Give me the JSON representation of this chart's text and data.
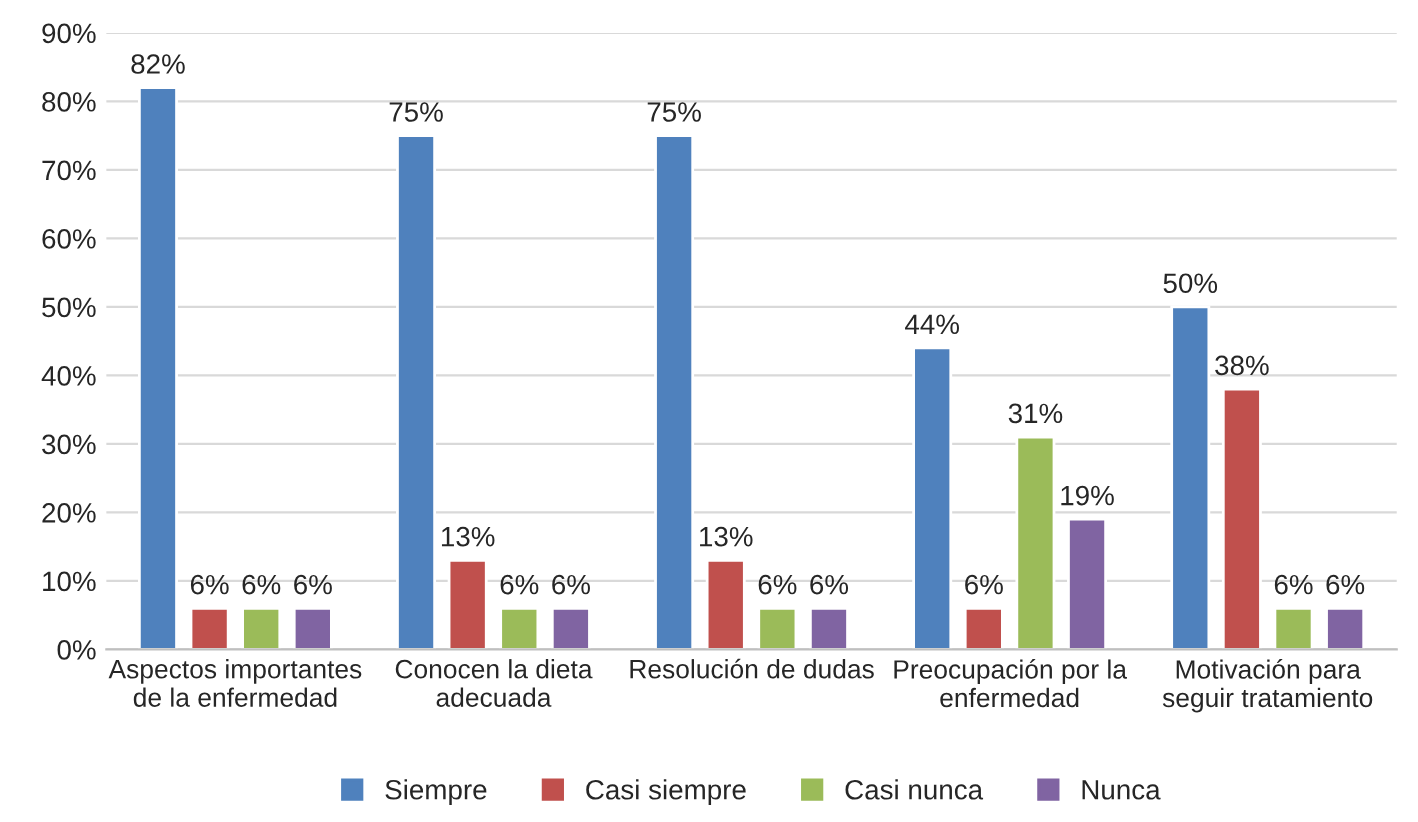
{
  "chart_data": {
    "type": "bar",
    "categories": [
      "Aspectos importantes\nde la enfermedad",
      "Conocen la dieta\nadecuada",
      "Resolución de dudas",
      "Preocupación por la\nenfermedad",
      "Motivación para\nseguir tratamiento"
    ],
    "series": [
      {
        "name": "Siempre",
        "color": "#4f81bd",
        "values": [
          82,
          75,
          75,
          44,
          50
        ],
        "value_labels": [
          "82%",
          "75%",
          "75%",
          "44%",
          "50%"
        ]
      },
      {
        "name": "Casi siempre",
        "color": "#c0504d",
        "values": [
          6,
          13,
          13,
          6,
          38
        ],
        "value_labels": [
          "6%",
          "13%",
          "13%",
          "6%",
          "38%"
        ]
      },
      {
        "name": "Casi nunca",
        "color": "#9bbb59",
        "values": [
          6,
          6,
          6,
          31,
          6
        ],
        "value_labels": [
          "6%",
          "6%",
          "6%",
          "31%",
          "6%"
        ]
      },
      {
        "name": "Nunca",
        "color": "#8064a2",
        "values": [
          6,
          6,
          6,
          19,
          6
        ],
        "value_labels": [
          "6%",
          "6%",
          "6%",
          "19%",
          "6%"
        ]
      }
    ],
    "ylim": [
      0,
      90
    ],
    "yticks": [
      {
        "value": 0,
        "label": "0%"
      },
      {
        "value": 10,
        "label": "10%"
      },
      {
        "value": 20,
        "label": "20%"
      },
      {
        "value": 30,
        "label": "30%"
      },
      {
        "value": 40,
        "label": "40%"
      },
      {
        "value": 50,
        "label": "50%"
      },
      {
        "value": 60,
        "label": "60%"
      },
      {
        "value": 70,
        "label": "70%"
      },
      {
        "value": 80,
        "label": "80%"
      },
      {
        "value": 90,
        "label": "90%"
      }
    ],
    "grid": "y",
    "legend": "bottom"
  }
}
